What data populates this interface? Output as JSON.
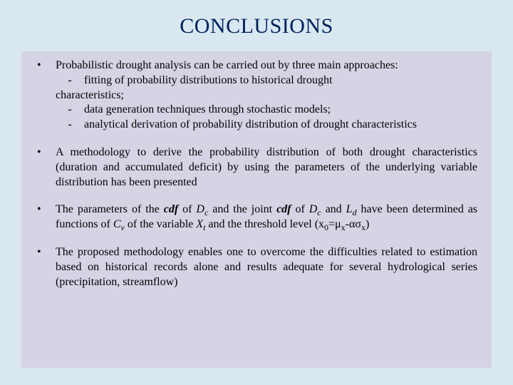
{
  "colors": {
    "background": "#d9e8f0",
    "content_box_bg": "#d6d3e5",
    "title_color": "#002060",
    "text_color": "#000000"
  },
  "typography": {
    "title_fontsize": 30,
    "body_fontsize": 16,
    "font_family": "Times New Roman"
  },
  "title": "CONCLUSIONS",
  "bullets": {
    "b1": {
      "lead": "Probabilistic drought analysis can be carried out by three main approaches:",
      "sub1": "fitting of probability distributions to historical drought",
      "sub1b": "characteristics;",
      "sub2": "data generation techniques through stochastic models;",
      "sub3": "analytical derivation of probability distribution of drought characteristics",
      "dash": "-"
    },
    "b2": "A methodology to derive the probability distribution of both drought characteristics (duration and accumulated deficit) by using the parameters of the underlying variable distribution has been presented",
    "b3": {
      "p1": "The parameters of the ",
      "cdf1": "cdf",
      "p2": " of ",
      "Dc1": "D",
      "Dc1sub": "c",
      "p3": " and the joint ",
      "cdf2": "cdf",
      "p4": " of ",
      "Dc2": "D",
      "Dc2sub": "c",
      "p5": " and ",
      "Ld": "L",
      "Ldsub": "d",
      "p6": " have been determined as functions of ",
      "Cv": "C",
      "Cvsub": "v",
      "p7": " of the variable ",
      "Xt": "X",
      "Xtsub": "t",
      "p8": " and the threshold level (x",
      "x0sub": "0",
      "p9": "=μ",
      "muxsub": "x",
      "p10": "-ασ",
      "sigsub": "x",
      "p11": ")"
    },
    "b4": "The proposed methodology enables one to overcome the difficulties related to estimation based on historical records alone and results adequate for several hydrological series (precipitation, streamflow)"
  },
  "bullet_char": "•"
}
